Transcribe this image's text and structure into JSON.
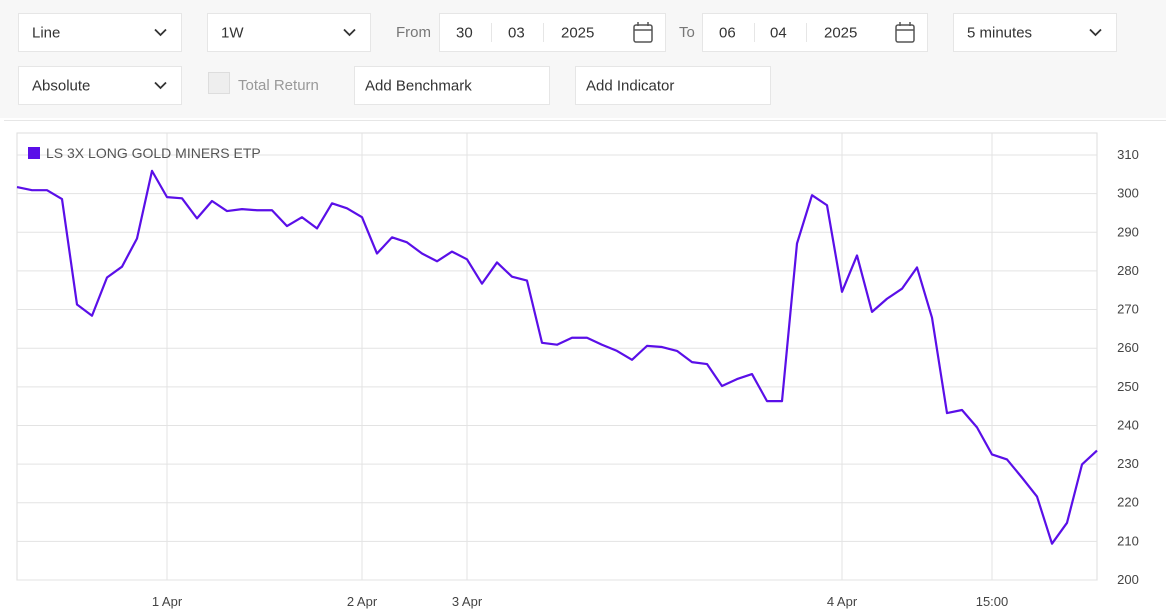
{
  "toolbar": {
    "chart_type": "Line",
    "period": "1W",
    "from_label": "From",
    "from_date": [
      "30",
      "03",
      "2025"
    ],
    "to_label": "To",
    "to_date": [
      "06",
      "04",
      "2025"
    ],
    "interval": "5 minutes",
    "scale": "Absolute",
    "total_return": "Total Return",
    "benchmark": "Add Benchmark",
    "indicator": "Add Indicator"
  },
  "chart_data": {
    "type": "line",
    "categories": [
      null,
      null,
      null,
      null,
      null,
      null,
      null,
      null,
      null,
      null,
      "1 Apr",
      null,
      null,
      null,
      null,
      null,
      null,
      null,
      null,
      null,
      null,
      null,
      null,
      "2 Apr",
      null,
      null,
      null,
      null,
      null,
      null,
      "3 Apr",
      null,
      null,
      null,
      null,
      null,
      null,
      null,
      null,
      null,
      null,
      null,
      null,
      null,
      null,
      null,
      null,
      null,
      null,
      null,
      null,
      null,
      null,
      null,
      null,
      "4 Apr",
      null,
      null,
      null,
      null,
      null,
      null,
      null,
      null,
      null,
      "15:00",
      null,
      null,
      null,
      null,
      null,
      null,
      null
    ],
    "series": [
      {
        "name": "LS 3X LONG GOLD MINERS ETP",
        "color": "#5a0fe8",
        "values": [
          301.7,
          300.9,
          300.9,
          298.6,
          271.3,
          268.4,
          278.3,
          281.1,
          288.4,
          305.9,
          299.1,
          298.8,
          293.6,
          298.1,
          295.5,
          296.0,
          295.7,
          295.7,
          291.6,
          293.9,
          291.0,
          297.5,
          296.2,
          293.9,
          284.5,
          288.7,
          287.4,
          284.5,
          282.5,
          285.0,
          283.0,
          276.7,
          282.2,
          278.5,
          277.5,
          261.4,
          260.9,
          262.7,
          262.7,
          260.9,
          259.3,
          257.0,
          260.6,
          260.3,
          259.3,
          256.4,
          255.9,
          250.2,
          252.0,
          253.3,
          246.3,
          246.3,
          287.1,
          299.6,
          297.0,
          274.6,
          284.0,
          269.4,
          272.8,
          275.4,
          280.9,
          267.9,
          243.2,
          244.0,
          239.5,
          232.5,
          231.2,
          226.5,
          221.6,
          209.4,
          214.8,
          229.9,
          233.5
        ]
      }
    ],
    "ylim": [
      200,
      315.7
    ],
    "yticks": [
      200,
      210,
      220,
      230,
      240,
      250,
      260,
      270,
      280,
      290,
      300,
      310
    ],
    "grid": true,
    "legend": "top-left"
  }
}
